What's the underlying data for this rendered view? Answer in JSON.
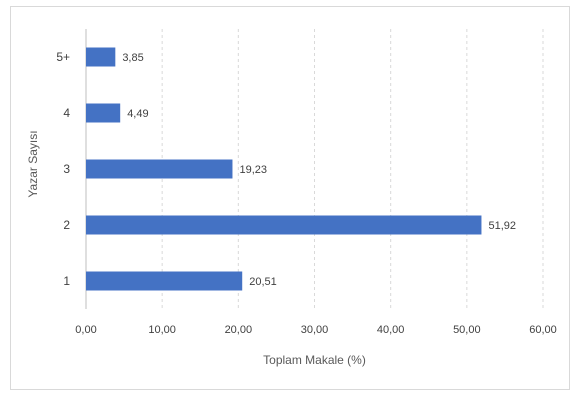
{
  "chart_data": {
    "type": "bar",
    "orientation": "horizontal",
    "categories": [
      "1",
      "2",
      "3",
      "4",
      "5+"
    ],
    "values": [
      20.51,
      51.92,
      19.23,
      4.49,
      3.85
    ],
    "data_labels": [
      "20,51",
      "51,92",
      "19,23",
      "4,49",
      "3,85"
    ],
    "xlabel": "Toplam Makale (%)",
    "ylabel": "Yazar Sayısı",
    "xlim": [
      0,
      60
    ],
    "x_ticks": [
      0,
      10,
      20,
      30,
      40,
      50,
      60
    ],
    "x_tick_labels": [
      "0,00",
      "10,00",
      "20,00",
      "30,00",
      "40,00",
      "50,00",
      "60,00"
    ],
    "grid": "vertical-dashed",
    "legend": "none",
    "bar_color": "#4472c4"
  }
}
